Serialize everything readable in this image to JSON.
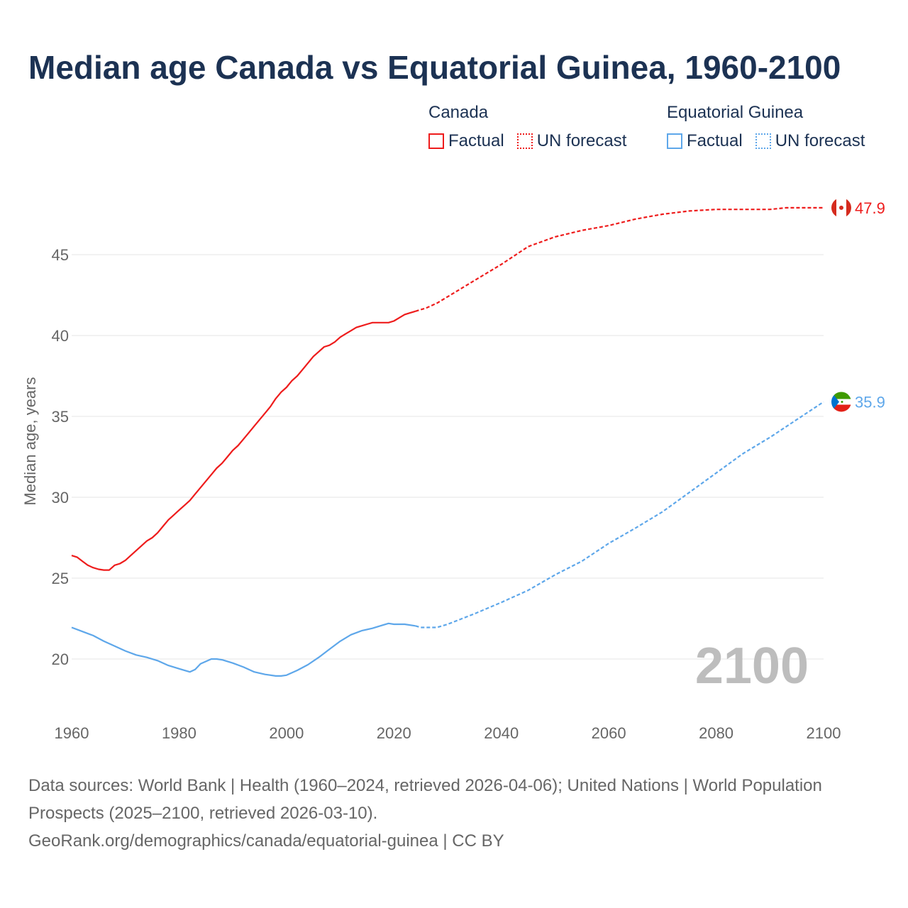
{
  "title": "Median age Canada vs Equatorial Guinea, 1960-2100",
  "legend": {
    "groups": [
      {
        "name": "Canada",
        "factual": "Factual",
        "forecast": "UN forecast",
        "color": "#ee1c1c"
      },
      {
        "name": "Equatorial Guinea",
        "factual": "Factual",
        "forecast": "UN forecast",
        "color": "#5ea7ea"
      }
    ]
  },
  "year_watermark": "2100",
  "footer": {
    "sources": "Data sources: World Bank | Health (1960–2024, retrieved 2026-04-06); United Nations | World Population Prospects (2025–2100, retrieved 2026-03-10).",
    "link": "GeoRank.org/demographics/canada/equatorial-guinea | CC BY"
  },
  "chart_data": {
    "type": "line",
    "title": "Median age Canada vs Equatorial Guinea, 1960-2100",
    "xlabel": "",
    "ylabel": "Median age, years",
    "xlim": [
      1960,
      2100
    ],
    "ylim": [
      17.5,
      49
    ],
    "xticks": [
      1960,
      1980,
      2000,
      2020,
      2040,
      2060,
      2080,
      2100
    ],
    "yticks": [
      20,
      25,
      30,
      35,
      40,
      45
    ],
    "grid": true,
    "series": [
      {
        "name": "Canada",
        "color": "#ee1c1c",
        "end_label": "47.9",
        "factual": {
          "x": [
            1960,
            1961,
            1962,
            1963,
            1964,
            1965,
            1966,
            1967,
            1968,
            1969,
            1970,
            1971,
            1972,
            1973,
            1974,
            1975,
            1976,
            1977,
            1978,
            1979,
            1980,
            1981,
            1982,
            1983,
            1984,
            1985,
            1986,
            1987,
            1988,
            1989,
            1990,
            1991,
            1992,
            1993,
            1994,
            1995,
            1996,
            1997,
            1998,
            1999,
            2000,
            2001,
            2002,
            2003,
            2004,
            2005,
            2006,
            2007,
            2008,
            2009,
            2010,
            2011,
            2012,
            2013,
            2014,
            2015,
            2016,
            2017,
            2018,
            2019,
            2020,
            2021,
            2022,
            2023,
            2024
          ],
          "y": [
            26.4,
            26.3,
            26.05,
            25.8,
            25.65,
            25.55,
            25.5,
            25.5,
            25.8,
            25.9,
            26.1,
            26.4,
            26.7,
            27.0,
            27.3,
            27.5,
            27.8,
            28.2,
            28.6,
            28.9,
            29.2,
            29.5,
            29.8,
            30.2,
            30.6,
            31.0,
            31.4,
            31.8,
            32.1,
            32.5,
            32.9,
            33.2,
            33.6,
            34.0,
            34.4,
            34.8,
            35.2,
            35.6,
            36.1,
            36.5,
            36.8,
            37.2,
            37.5,
            37.9,
            38.3,
            38.7,
            39.0,
            39.3,
            39.4,
            39.6,
            39.9,
            40.1,
            40.3,
            40.5,
            40.6,
            40.7,
            40.8,
            40.8,
            40.8,
            40.8,
            40.9,
            41.1,
            41.3,
            41.4,
            41.5
          ]
        },
        "forecast": {
          "x": [
            2024,
            2026,
            2028,
            2030,
            2033,
            2036,
            2040,
            2045,
            2050,
            2055,
            2060,
            2065,
            2070,
            2075,
            2080,
            2085,
            2090,
            2093,
            2100
          ],
          "y": [
            41.5,
            41.7,
            42.0,
            42.4,
            43.0,
            43.6,
            44.4,
            45.5,
            46.1,
            46.5,
            46.8,
            47.2,
            47.5,
            47.7,
            47.8,
            47.8,
            47.8,
            47.9,
            47.9
          ]
        }
      },
      {
        "name": "Equatorial Guinea",
        "color": "#5ea7ea",
        "end_label": "35.9",
        "factual": {
          "x": [
            1960,
            1962,
            1964,
            1966,
            1968,
            1970,
            1972,
            1974,
            1976,
            1978,
            1980,
            1982,
            1983,
            1984,
            1986,
            1987,
            1988,
            1990,
            1992,
            1994,
            1996,
            1998,
            1999,
            2000,
            2002,
            2004,
            2006,
            2008,
            2010,
            2012,
            2014,
            2016,
            2018,
            2019,
            2020,
            2022,
            2024
          ],
          "y": [
            21.95,
            21.7,
            21.45,
            21.1,
            20.8,
            20.5,
            20.25,
            20.1,
            19.9,
            19.6,
            19.4,
            19.2,
            19.35,
            19.7,
            20.0,
            20.0,
            19.95,
            19.75,
            19.5,
            19.2,
            19.05,
            18.95,
            18.95,
            19.0,
            19.3,
            19.65,
            20.1,
            20.6,
            21.1,
            21.5,
            21.75,
            21.9,
            22.1,
            22.2,
            22.15,
            22.15,
            22.05
          ]
        },
        "forecast": {
          "x": [
            2024,
            2025,
            2028,
            2030,
            2035,
            2040,
            2045,
            2050,
            2055,
            2060,
            2065,
            2070,
            2075,
            2080,
            2085,
            2090,
            2095,
            2100
          ],
          "y": [
            22.05,
            21.95,
            21.95,
            22.15,
            22.8,
            23.5,
            24.25,
            25.2,
            26.05,
            27.15,
            28.1,
            29.1,
            30.3,
            31.5,
            32.7,
            33.7,
            34.8,
            35.9
          ]
        }
      }
    ]
  }
}
